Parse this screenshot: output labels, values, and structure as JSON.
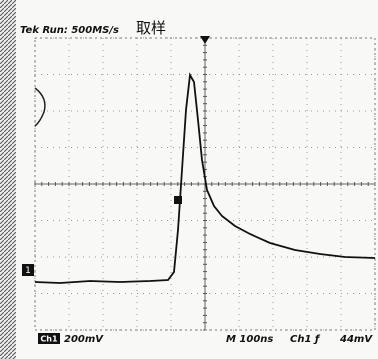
{
  "header": {
    "status": "Tek Run: 500MS/s",
    "mode": "取样"
  },
  "footer": {
    "channel": "Ch1",
    "scale": "200mV",
    "timebase": "M 100ns",
    "trigger_source": "Ch1 ƒ",
    "trigger_level": "44mV"
  },
  "markers": {
    "ground": "1"
  }
}
